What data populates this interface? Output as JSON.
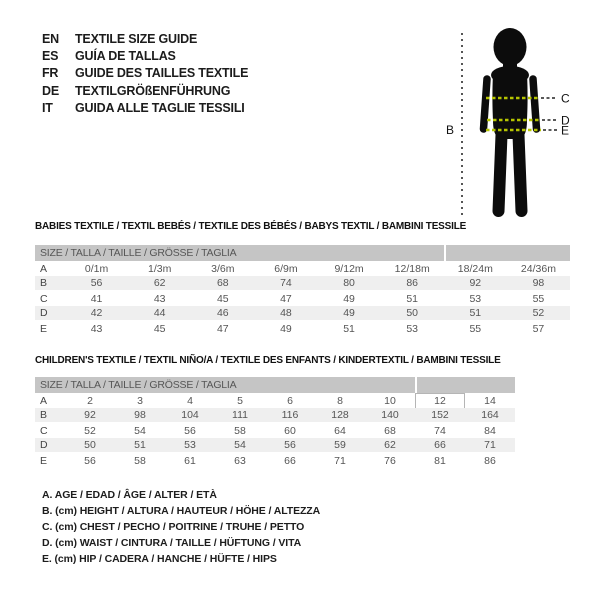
{
  "languages": [
    {
      "code": "EN",
      "label": "TEXTILE SIZE GUIDE"
    },
    {
      "code": "ES",
      "label": "GUÍA DE TALLAS"
    },
    {
      "code": "FR",
      "label": "GUIDE DES TAILLES TEXTILE"
    },
    {
      "code": "DE",
      "label": "TEXTILGRÖßENFÜHRUNG"
    },
    {
      "code": "IT",
      "label": "GUIDA ALLE TAGLIE TESSILI"
    }
  ],
  "figure": {
    "labels": {
      "b": "B",
      "c": "C",
      "d": "D",
      "e": "E"
    },
    "silhouette_color": "#0c0c0c",
    "measure_dash_color": "#b5c400",
    "extension_dash_color": "#222222"
  },
  "babies_table": {
    "title": "BABIES TEXTILE / TEXTIL BEBÉS / TEXTILE DES BÉBÉS / BABYS TEXTIL / BAMBINI TESSILE",
    "header": "SIZE / TALLA / TAILLE / GRÖSSE / TAGLIA",
    "rows": [
      {
        "label": "A",
        "values": [
          "0/1m",
          "1/3m",
          "3/6m",
          "6/9m",
          "9/12m",
          "12/18m",
          "18/24m",
          "24/36m"
        ]
      },
      {
        "label": "B",
        "values": [
          "56",
          "62",
          "68",
          "74",
          "80",
          "86",
          "92",
          "98"
        ]
      },
      {
        "label": "C",
        "values": [
          "41",
          "43",
          "45",
          "47",
          "49",
          "51",
          "53",
          "55"
        ]
      },
      {
        "label": "D",
        "values": [
          "42",
          "44",
          "46",
          "48",
          "49",
          "50",
          "51",
          "52"
        ]
      },
      {
        "label": "E",
        "values": [
          "43",
          "45",
          "47",
          "49",
          "51",
          "53",
          "55",
          "57"
        ]
      }
    ]
  },
  "children_table": {
    "title": "CHILDREN'S TEXTILE / TEXTIL NIÑO/A / TEXTILE DES ENFANTS / KINDERTEXTIL / BAMBINI TESSILE",
    "header": "SIZE / TALLA / TAILLE / GRÖSSE / TAGLIA",
    "highlight_cell": {
      "row": 0,
      "col": 7
    },
    "rows": [
      {
        "label": "A",
        "values": [
          "2",
          "3",
          "4",
          "5",
          "6",
          "8",
          "10",
          "12",
          "14"
        ]
      },
      {
        "label": "B",
        "values": [
          "92",
          "98",
          "104",
          "111",
          "116",
          "128",
          "140",
          "152",
          "164"
        ]
      },
      {
        "label": "C",
        "values": [
          "52",
          "54",
          "56",
          "58",
          "60",
          "64",
          "68",
          "74",
          "84"
        ]
      },
      {
        "label": "D",
        "values": [
          "50",
          "51",
          "53",
          "54",
          "56",
          "59",
          "62",
          "66",
          "71"
        ]
      },
      {
        "label": "E",
        "values": [
          "56",
          "58",
          "61",
          "63",
          "66",
          "71",
          "76",
          "81",
          "86"
        ]
      }
    ]
  },
  "legend": {
    "lines": [
      "A. AGE / EDAD / ÂGE / ALTER / ETÀ",
      "B. (cm) HEIGHT / ALTURA / HAUTEUR / HÖHE / ALTEZZA",
      "C. (cm) CHEST / PECHO / POITRINE / TRUHE / PETTO",
      "D. (cm) WAIST / CINTURA / TAILLE / HÜFTUNG / VITA",
      "E. (cm) HIP / CADERA / HANCHE / HÜFTE / HIPS"
    ]
  },
  "colors": {
    "header_bar": "#c5c5c5",
    "row_stripe": "#efefef",
    "table_text": "#555555"
  }
}
